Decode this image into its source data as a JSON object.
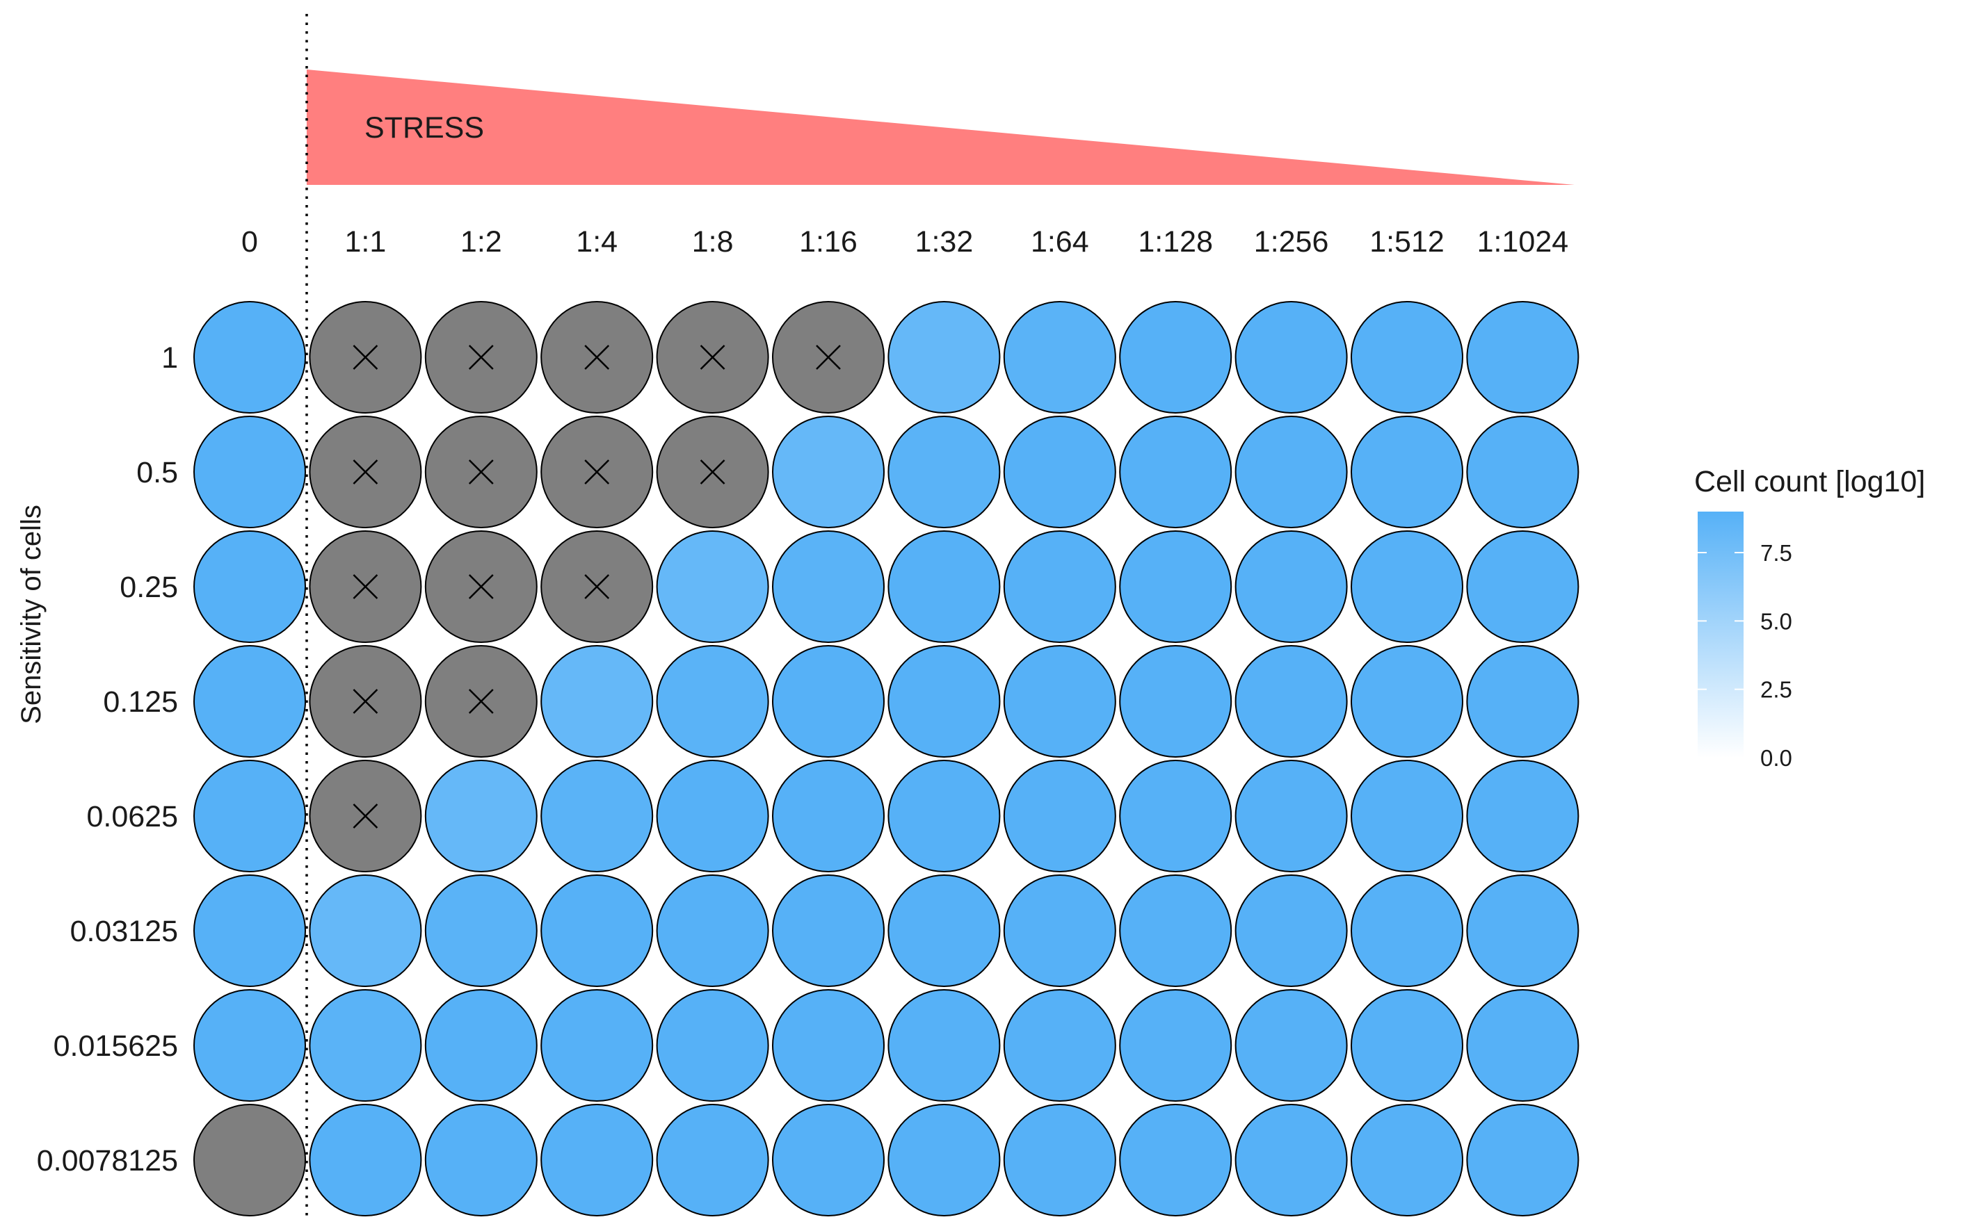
{
  "chart_data": {
    "type": "heatmap",
    "annotation": "STRESS",
    "ylabel": "Sensitivity of cells",
    "x_categories": [
      "0",
      "1:1",
      "1:2",
      "1:4",
      "1:8",
      "1:16",
      "1:32",
      "1:64",
      "1:128",
      "1:256",
      "1:512",
      "1:1024"
    ],
    "y_categories": [
      "1",
      "0.5",
      "0.25",
      "0.125",
      "0.0625",
      "0.03125",
      "0.015625",
      "0.0078125"
    ],
    "values": [
      [
        9.0,
        null,
        null,
        null,
        null,
        null,
        8.2,
        8.8,
        9.0,
        9.0,
        9.0,
        9.0
      ],
      [
        9.0,
        null,
        null,
        null,
        null,
        8.2,
        8.8,
        9.0,
        9.0,
        9.0,
        9.0,
        9.0
      ],
      [
        9.0,
        null,
        null,
        null,
        8.2,
        8.8,
        9.0,
        9.0,
        9.0,
        9.0,
        9.0,
        9.0
      ],
      [
        9.0,
        null,
        null,
        8.2,
        8.8,
        9.0,
        9.0,
        9.0,
        9.0,
        9.0,
        9.0,
        9.0
      ],
      [
        9.0,
        null,
        8.2,
        8.8,
        9.0,
        9.0,
        9.0,
        9.0,
        9.0,
        9.0,
        9.0,
        9.0
      ],
      [
        9.0,
        8.2,
        8.8,
        9.0,
        9.0,
        9.0,
        9.0,
        9.0,
        9.0,
        9.0,
        9.0,
        9.0
      ],
      [
        9.0,
        8.8,
        9.0,
        9.0,
        9.0,
        9.0,
        9.0,
        9.0,
        9.0,
        9.0,
        9.0,
        9.0
      ],
      [
        null,
        9.0,
        9.0,
        9.0,
        9.0,
        9.0,
        9.0,
        9.0,
        9.0,
        9.0,
        9.0,
        9.0
      ]
    ],
    "crossed_cells": [
      [
        0,
        1
      ],
      [
        0,
        2
      ],
      [
        0,
        3
      ],
      [
        0,
        4
      ],
      [
        0,
        5
      ],
      [
        1,
        1
      ],
      [
        1,
        2
      ],
      [
        1,
        3
      ],
      [
        1,
        4
      ],
      [
        2,
        1
      ],
      [
        2,
        2
      ],
      [
        2,
        3
      ],
      [
        3,
        1
      ],
      [
        3,
        2
      ],
      [
        4,
        1
      ]
    ],
    "na_color": "#7f7f7f",
    "low_color": "#ffffff",
    "high_color": "#56b1f7",
    "legend": {
      "title": "Cell count [log10]",
      "ticks": [
        "7.5",
        "5.0",
        "2.5",
        "0.0"
      ],
      "tick_values": [
        7.5,
        5.0,
        2.5,
        0.0
      ],
      "range": [
        0,
        9
      ]
    },
    "stress_color": "#ff7f7f"
  }
}
